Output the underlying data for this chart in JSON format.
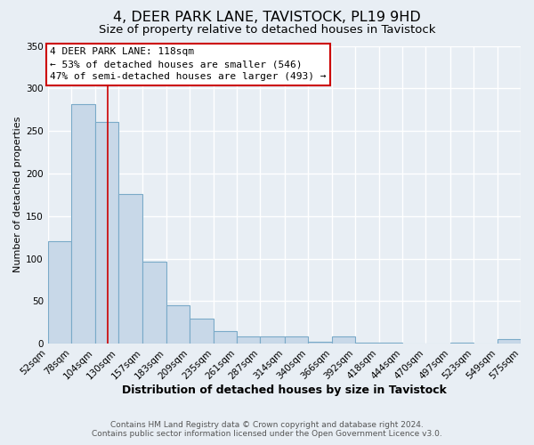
{
  "title": "4, DEER PARK LANE, TAVISTOCK, PL19 9HD",
  "subtitle": "Size of property relative to detached houses in Tavistock",
  "xlabel": "Distribution of detached houses by size in Tavistock",
  "ylabel": "Number of detached properties",
  "bar_left_edges": [
    52,
    78,
    104,
    130,
    157,
    183,
    209,
    235,
    261,
    287,
    314,
    340,
    366,
    392,
    418,
    444,
    470,
    497,
    523,
    549
  ],
  "bar_heights": [
    120,
    281,
    261,
    176,
    96,
    45,
    29,
    15,
    8,
    8,
    9,
    2,
    8,
    1,
    1,
    0,
    0,
    1,
    0,
    5
  ],
  "bar_widths": [
    26,
    26,
    26,
    27,
    26,
    26,
    26,
    26,
    26,
    27,
    26,
    26,
    26,
    26,
    26,
    26,
    27,
    26,
    26,
    26
  ],
  "tick_labels": [
    "52sqm",
    "78sqm",
    "104sqm",
    "130sqm",
    "157sqm",
    "183sqm",
    "209sqm",
    "235sqm",
    "261sqm",
    "287sqm",
    "314sqm",
    "340sqm",
    "366sqm",
    "392sqm",
    "418sqm",
    "444sqm",
    "470sqm",
    "497sqm",
    "523sqm",
    "549sqm",
    "575sqm"
  ],
  "bar_color": "#c8d8e8",
  "bar_edge_color": "#7aaac8",
  "property_line_x": 118,
  "ylim": [
    0,
    350
  ],
  "yticks": [
    0,
    50,
    100,
    150,
    200,
    250,
    300,
    350
  ],
  "annotation_title": "4 DEER PARK LANE: 118sqm",
  "annotation_line1": "← 53% of detached houses are smaller (546)",
  "annotation_line2": "47% of semi-detached houses are larger (493) →",
  "annotation_box_color": "#ffffff",
  "annotation_box_edge": "#cc0000",
  "footer_line1": "Contains HM Land Registry data © Crown copyright and database right 2024.",
  "footer_line2": "Contains public sector information licensed under the Open Government Licence v3.0.",
  "background_color": "#e8eef4",
  "grid_color": "#ffffff",
  "title_fontsize": 11.5,
  "subtitle_fontsize": 9.5,
  "xlabel_fontsize": 9,
  "ylabel_fontsize": 8,
  "tick_fontsize": 7.5,
  "footer_fontsize": 6.5,
  "ann_fontsize": 8
}
